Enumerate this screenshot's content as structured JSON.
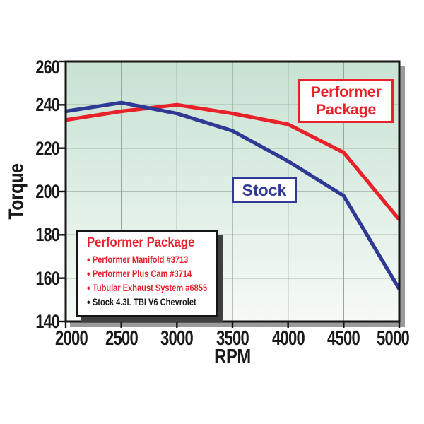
{
  "chart_data": {
    "type": "line",
    "title": "",
    "xlabel": "RPM",
    "ylabel": "Torque",
    "x": [
      2000,
      2500,
      3000,
      3500,
      4000,
      4500,
      5000
    ],
    "xlim": [
      2000,
      5000
    ],
    "ylim": [
      140,
      260
    ],
    "xticks": [
      2000,
      2500,
      3000,
      3500,
      4000,
      4500,
      5000
    ],
    "yticks": [
      140,
      160,
      180,
      200,
      220,
      240,
      260
    ],
    "grid": true,
    "series": [
      {
        "name": "Performer Package",
        "color": "#e8212b",
        "values": [
          233,
          237,
          240,
          236,
          231,
          218,
          187
        ]
      },
      {
        "name": "Stock",
        "color": "#2e3a93",
        "values": [
          237,
          241,
          236,
          228,
          214,
          198,
          155
        ]
      }
    ]
  },
  "annotations": {
    "performer_box": {
      "line1": "Performer",
      "line2": "Package",
      "color": "#e8212b"
    },
    "stock_box": {
      "label": "Stock",
      "color": "#2e3a93"
    }
  },
  "legend": {
    "title": "Performer Package",
    "title_color": "#e8212b",
    "items": [
      {
        "text": "Performer Manifold #3713",
        "color": "#e8212b"
      },
      {
        "text": "Performer Plus Cam #3714",
        "color": "#e8212b"
      },
      {
        "text": "Tubular Exhaust System #6855",
        "color": "#e8212b"
      },
      {
        "text": "Stock 4.3L TBI V6 Chevrolet",
        "color": "#1b1b1b"
      }
    ]
  },
  "colors": {
    "plot_bg_top": "#c7e2d3",
    "plot_bg_bottom": "#f6faf6",
    "gridline": "#99a49d",
    "plot_border": "#151515",
    "plot_shadow": "#9b9b9b",
    "legend_shadow": "#3f3f3f",
    "tick": "#111111",
    "text": "#1a1a1a"
  }
}
